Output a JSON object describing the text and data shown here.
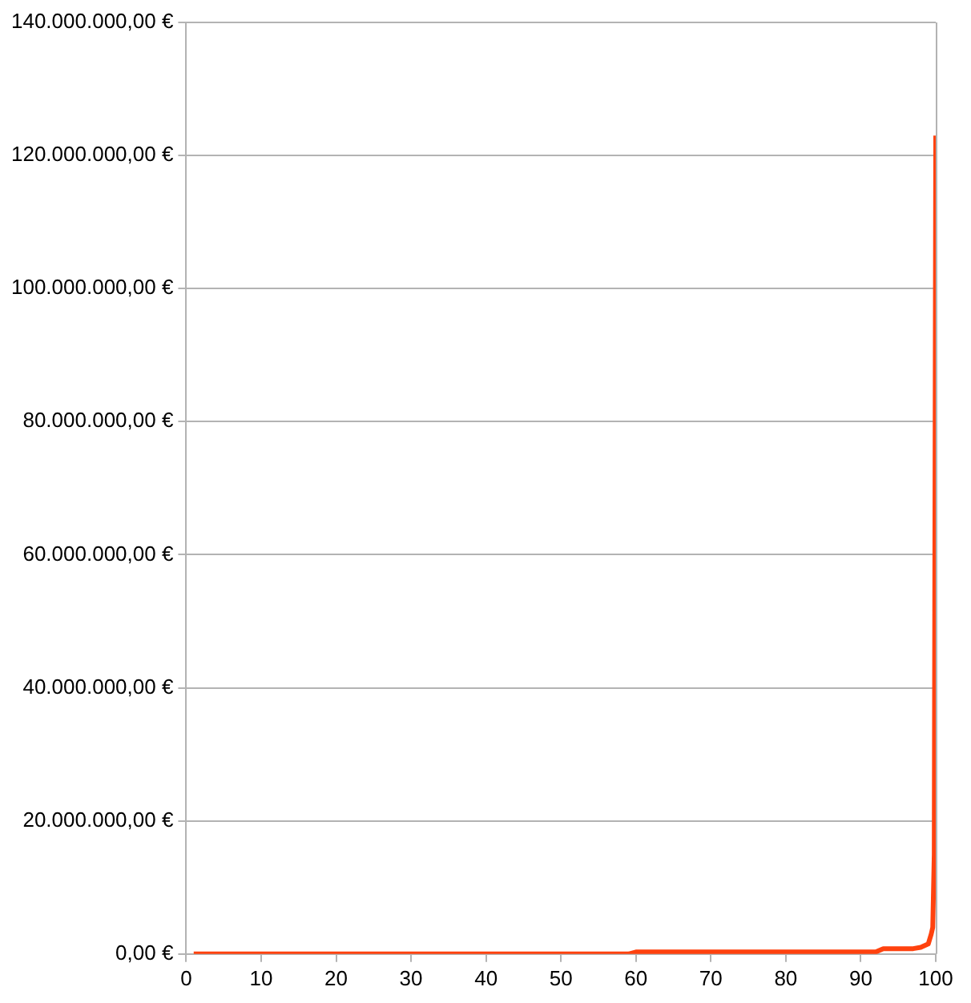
{
  "chart_data": {
    "type": "line",
    "x": [
      1,
      10,
      20,
      30,
      40,
      50,
      59,
      60,
      70,
      80,
      90,
      92,
      93,
      95,
      97,
      98,
      99,
      99.4,
      99.6,
      99.8,
      100
    ],
    "values": [
      0,
      0,
      0,
      0,
      0,
      0,
      0,
      300000,
      300000,
      300000,
      300000,
      300000,
      800000,
      800000,
      800000,
      1000000,
      1500000,
      3000000,
      4000000,
      15000000,
      123000000
    ],
    "color": "#ff420e",
    "marker": "none",
    "line_style": "solid",
    "grid": "y",
    "legend": false,
    "xlim": [
      0,
      100
    ],
    "xticks": [
      0,
      10,
      20,
      30,
      40,
      50,
      60,
      70,
      80,
      90,
      100
    ],
    "ylim": [
      0,
      140000000
    ],
    "yticks": [
      {
        "value": 0,
        "label": "0,00 €"
      },
      {
        "value": 20000000,
        "label": "20.000.000,00 €"
      },
      {
        "value": 40000000,
        "label": "40.000.000,00 €"
      },
      {
        "value": 60000000,
        "label": "60.000.000,00 €"
      },
      {
        "value": 80000000,
        "label": "80.000.000,00 €"
      },
      {
        "value": 100000000,
        "label": "100.000.000,00 €"
      },
      {
        "value": 120000000,
        "label": "120.000.000,00 €"
      },
      {
        "value": 140000000,
        "label": "140.000.000,00 €"
      }
    ]
  }
}
